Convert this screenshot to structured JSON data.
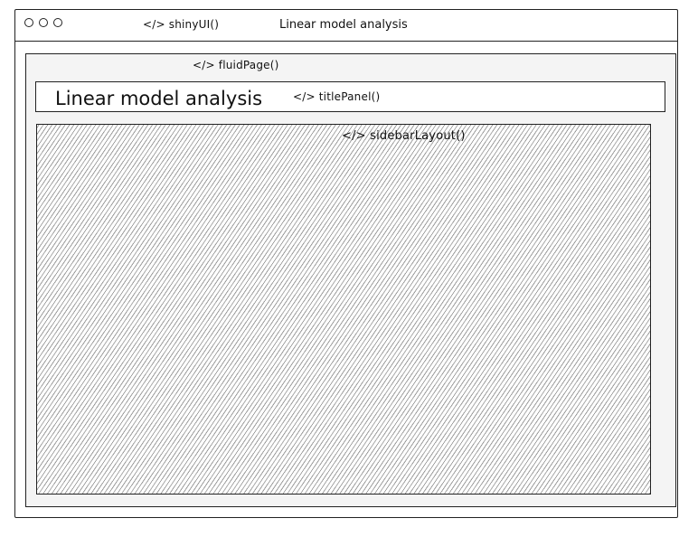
{
  "window": {
    "app_function_tag": "</> shinyUI()",
    "app_title": "Linear model analysis"
  },
  "fluid_page": {
    "tag": "</> fluidPage()"
  },
  "title_panel": {
    "title": "Linear model analysis",
    "tag": "</> titlePanel()"
  },
  "sidebar_layout": {
    "tag": "</> sidebarLayout()"
  }
}
